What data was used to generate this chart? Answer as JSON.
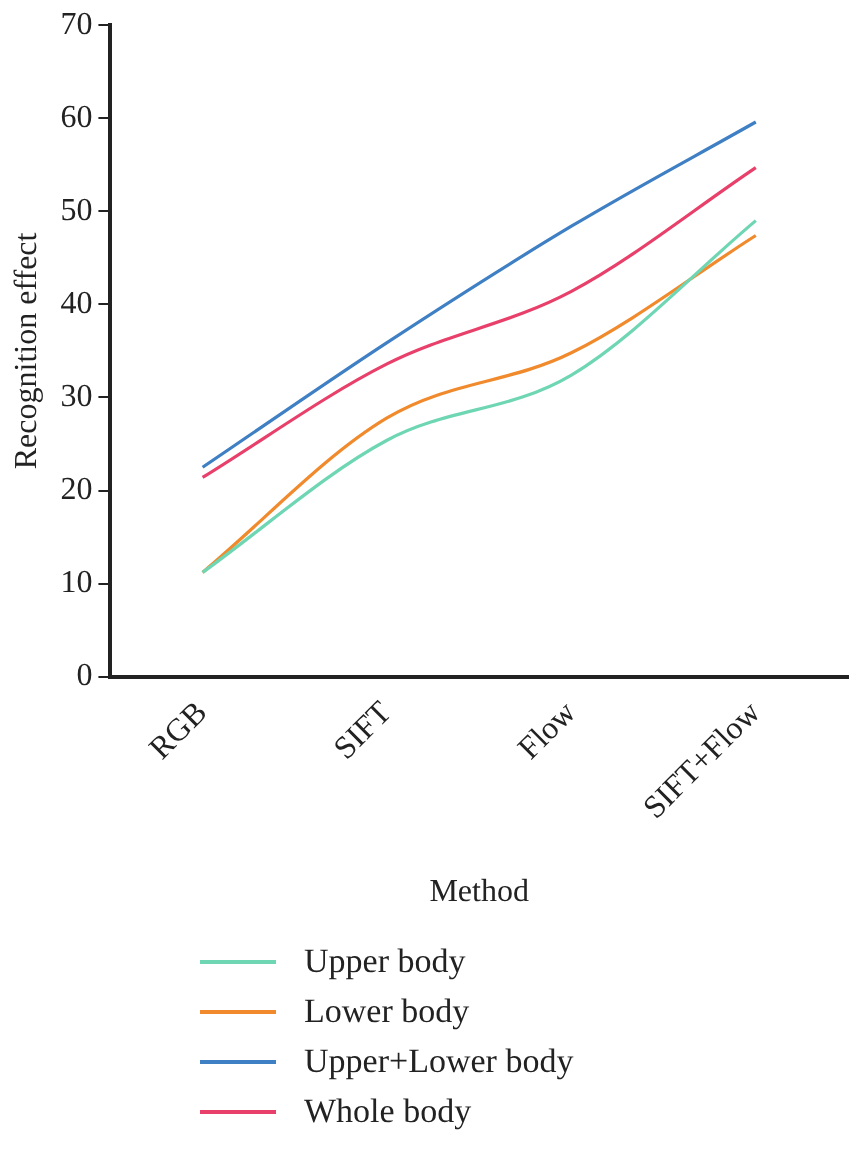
{
  "chart_data": {
    "type": "line",
    "xlabel": "Method",
    "ylabel": "Recognition effect",
    "categories": [
      "RGB",
      "SIFT",
      "Flow",
      "SIFT+Flow"
    ],
    "ylim": [
      0,
      70
    ],
    "yticks": [
      0,
      10,
      20,
      30,
      40,
      50,
      60,
      70
    ],
    "grid": false,
    "legend": "bottom",
    "marker": "none",
    "line_style": "solid",
    "series": [
      {
        "name": "Upper body",
        "color": "#6fd6b4",
        "values": [
          11.2,
          25.4,
          32.4,
          49
        ]
      },
      {
        "name": "Lower body",
        "color": "#f08a2c",
        "values": [
          11.2,
          27.8,
          34.8,
          47.4
        ]
      },
      {
        "name": "Upper+Lower body",
        "color": "#3f7fc4",
        "values": [
          22.5,
          35.9,
          48.4,
          59.6
        ]
      },
      {
        "name": "Whole body",
        "color": "#e8406a",
        "values": [
          21.4,
          33.6,
          41.4,
          54.7
        ]
      }
    ]
  }
}
